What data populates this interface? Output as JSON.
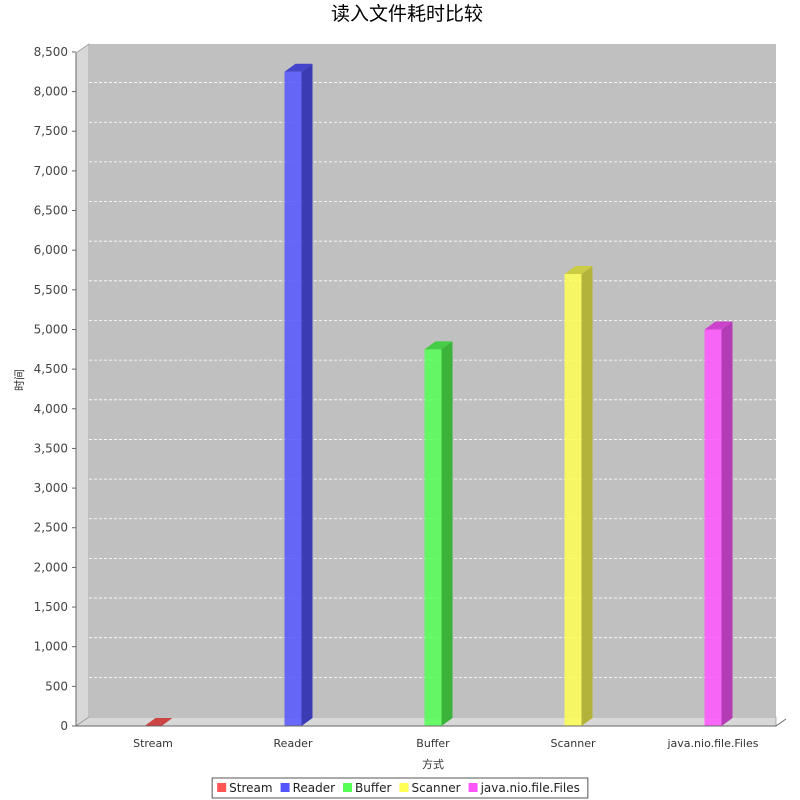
{
  "chart_data": {
    "type": "bar",
    "title": "读入文件耗时比较",
    "xlabel": "方式",
    "ylabel": "时间",
    "categories": [
      "Stream",
      "Reader",
      "Buffer",
      "Scanner",
      "java.nio.file.Files"
    ],
    "series": [
      {
        "name": "Stream",
        "color": "#ff5555",
        "values": [
          0,
          null,
          null,
          null,
          null
        ]
      },
      {
        "name": "Reader",
        "color": "#5555ff",
        "values": [
          null,
          8250,
          null,
          null,
          null
        ]
      },
      {
        "name": "Buffer",
        "color": "#55ff55",
        "values": [
          null,
          null,
          4750,
          null,
          null
        ]
      },
      {
        "name": "Scanner",
        "color": "#ffff55",
        "values": [
          null,
          null,
          null,
          5700,
          null
        ]
      },
      {
        "name": "java.nio.file.Files",
        "color": "#ff55ff",
        "values": [
          null,
          null,
          null,
          null,
          5000
        ]
      }
    ],
    "ylim": [
      0,
      8600
    ],
    "yticks": [
      0,
      500,
      1000,
      1500,
      2000,
      2500,
      3000,
      3500,
      4000,
      4500,
      5000,
      5500,
      6000,
      6500,
      7000,
      7500,
      8000,
      8500
    ],
    "ytick_labels": [
      "0",
      "500",
      "1,000",
      "1,500",
      "2,000",
      "2,500",
      "3,000",
      "3,500",
      "4,000",
      "4,500",
      "5,000",
      "5,500",
      "6,000",
      "6,500",
      "7,000",
      "7,500",
      "8,000",
      "8,500"
    ],
    "grid": true,
    "legend_position": "bottom",
    "background_color": "#c0c0c0"
  }
}
